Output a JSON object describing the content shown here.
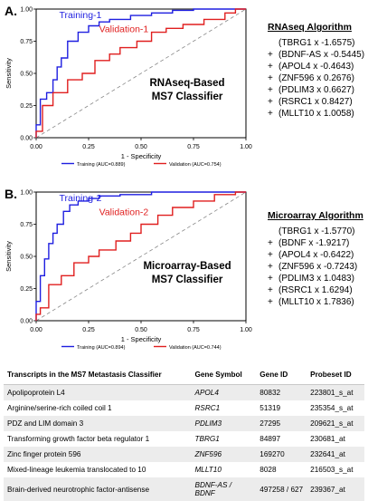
{
  "panels": [
    {
      "letter": "A.",
      "chart_data": {
        "type": "line",
        "title": "",
        "xlabel": "1 - Specificity",
        "ylabel": "Sensitivity",
        "xlim": [
          0,
          1
        ],
        "ylim": [
          0,
          1
        ],
        "xticks": [
          "0.00",
          "0.25",
          "0.50",
          "0.75",
          "1.00"
        ],
        "yticks": [
          "0.00",
          "0.25",
          "0.50",
          "0.75",
          "1.00"
        ],
        "annotation_lines": [
          "RNAseq-Based",
          "MS7 Classifier"
        ],
        "series": [
          {
            "name": "Training-1",
            "color": "#1f1fe0",
            "x": [
              0,
              0,
              0.02,
              0.02,
              0.05,
              0.05,
              0.08,
              0.08,
              0.1,
              0.1,
              0.12,
              0.12,
              0.15,
              0.15,
              0.2,
              0.2,
              0.25,
              0.25,
              0.3,
              0.3,
              0.35,
              0.35,
              0.45,
              0.45,
              0.55,
              0.55,
              0.65,
              0.65,
              0.75,
              0.75,
              1.0
            ],
            "y": [
              0,
              0.1,
              0.1,
              0.3,
              0.3,
              0.35,
              0.35,
              0.45,
              0.45,
              0.55,
              0.55,
              0.62,
              0.62,
              0.75,
              0.75,
              0.82,
              0.82,
              0.87,
              0.87,
              0.9,
              0.9,
              0.92,
              0.92,
              0.95,
              0.95,
              0.97,
              0.97,
              0.99,
              0.99,
              1.0,
              1.0
            ]
          },
          {
            "name": "Validation-1",
            "color": "#e01f1f",
            "x": [
              0,
              0,
              0.03,
              0.03,
              0.08,
              0.08,
              0.15,
              0.15,
              0.22,
              0.22,
              0.28,
              0.28,
              0.35,
              0.35,
              0.4,
              0.4,
              0.48,
              0.48,
              0.55,
              0.55,
              0.62,
              0.62,
              0.7,
              0.7,
              0.8,
              0.8,
              0.9,
              0.9,
              0.95,
              0.95,
              1.0
            ],
            "y": [
              0,
              0.05,
              0.05,
              0.25,
              0.25,
              0.35,
              0.35,
              0.45,
              0.45,
              0.5,
              0.5,
              0.6,
              0.6,
              0.65,
              0.65,
              0.7,
              0.7,
              0.75,
              0.75,
              0.82,
              0.82,
              0.85,
              0.85,
              0.88,
              0.88,
              0.92,
              0.92,
              0.97,
              0.97,
              1.0,
              1.0
            ]
          }
        ],
        "legend": [
          {
            "label": "Training (AUC=0.889)",
            "color": "#1f1fe0"
          },
          {
            "label": "Validation (AUC=0.754)",
            "color": "#e01f1f"
          }
        ]
      },
      "algorithm": {
        "title": "RNAseq Algorithm",
        "terms": [
          {
            "prefix": "",
            "text": "(TBRG1 x -1.6575)"
          },
          {
            "prefix": "+",
            "text": "(BDNF-AS x -0.5445)"
          },
          {
            "prefix": "+",
            "text": "(APOL4 x -0.4643)"
          },
          {
            "prefix": "+",
            "text": "(ZNF596 x 0.2676)"
          },
          {
            "prefix": "+",
            "text": "(PDLIM3 x 0.6627)"
          },
          {
            "prefix": "+",
            "text": "(RSRC1 x 0.8427)"
          },
          {
            "prefix": "+",
            "text": "(MLLT10 x 1.0058)"
          }
        ]
      }
    },
    {
      "letter": "B.",
      "chart_data": {
        "type": "line",
        "title": "",
        "xlabel": "1 - Specificity",
        "ylabel": "Sensitivity",
        "xlim": [
          0,
          1
        ],
        "ylim": [
          0,
          1
        ],
        "xticks": [
          "0.00",
          "0.25",
          "0.50",
          "0.75",
          "1.00"
        ],
        "yticks": [
          "0.00",
          "0.25",
          "0.50",
          "0.75",
          "1.00"
        ],
        "annotation_lines": [
          "Microarray-Based",
          "MS7 Classifier"
        ],
        "series": [
          {
            "name": "Training-2",
            "color": "#1f1fe0",
            "x": [
              0,
              0,
              0.02,
              0.02,
              0.04,
              0.04,
              0.06,
              0.06,
              0.08,
              0.08,
              0.1,
              0.1,
              0.13,
              0.13,
              0.16,
              0.16,
              0.2,
              0.2,
              0.25,
              0.25,
              0.3,
              0.3,
              0.4,
              0.4,
              0.55,
              0.55,
              0.7,
              0.7,
              1.0
            ],
            "y": [
              0,
              0.15,
              0.15,
              0.35,
              0.35,
              0.48,
              0.48,
              0.6,
              0.6,
              0.68,
              0.68,
              0.75,
              0.75,
              0.85,
              0.85,
              0.9,
              0.9,
              0.93,
              0.93,
              0.95,
              0.95,
              0.97,
              0.97,
              0.98,
              0.98,
              1.0,
              1.0,
              1.0,
              1.0
            ]
          },
          {
            "name": "Validation-2",
            "color": "#e01f1f",
            "x": [
              0,
              0,
              0.02,
              0.02,
              0.06,
              0.06,
              0.12,
              0.12,
              0.18,
              0.18,
              0.25,
              0.25,
              0.3,
              0.3,
              0.38,
              0.38,
              0.45,
              0.45,
              0.5,
              0.5,
              0.58,
              0.58,
              0.65,
              0.65,
              0.75,
              0.75,
              0.85,
              0.85,
              0.95,
              0.95,
              1.0
            ],
            "y": [
              0,
              0.05,
              0.05,
              0.1,
              0.1,
              0.28,
              0.28,
              0.35,
              0.35,
              0.45,
              0.45,
              0.5,
              0.5,
              0.55,
              0.55,
              0.62,
              0.62,
              0.68,
              0.68,
              0.75,
              0.75,
              0.82,
              0.82,
              0.88,
              0.88,
              0.93,
              0.93,
              0.98,
              0.98,
              1.0,
              1.0
            ]
          }
        ],
        "legend": [
          {
            "label": "Training (AUC=0.894)",
            "color": "#1f1fe0"
          },
          {
            "label": "Validation (AUC=0.744)",
            "color": "#e01f1f"
          }
        ]
      },
      "algorithm": {
        "title": "Microarray Algorithm",
        "terms": [
          {
            "prefix": "",
            "text": "(TBRG1 x -1.5770)"
          },
          {
            "prefix": "+",
            "text": "(BDNF x -1.9217)"
          },
          {
            "prefix": "+",
            "text": "(APOL4 x -0.6422)"
          },
          {
            "prefix": "+",
            "text": "(ZNF596 x -0.7243)"
          },
          {
            "prefix": "+",
            "text": "(PDLIM3 x 1.0483)"
          },
          {
            "prefix": "+",
            "text": "(RSRC1 x 1.6294)"
          },
          {
            "prefix": "+",
            "text": "(MLLT10 x 1.7836)"
          }
        ]
      }
    }
  ],
  "table": {
    "headers": [
      "Transcripts in the MS7 Metastasis Classifier",
      "Gene Symbol",
      "Gene ID",
      "Probeset ID"
    ],
    "rows": [
      [
        "Apolipoprotein L4",
        "APOL4",
        "80832",
        "223801_s_at"
      ],
      [
        "Arginine/serine-rich coiled coil 1",
        "RSRC1",
        "51319",
        "235354_s_at"
      ],
      [
        "PDZ and LIM domain 3",
        "PDLIM3",
        "27295",
        "209621_s_at"
      ],
      [
        "Transforming growth factor beta regulator 1",
        "TBRG1",
        "84897",
        "230681_at"
      ],
      [
        "Zinc finger protein 596",
        "ZNF596",
        "169270",
        "232641_at"
      ],
      [
        "Mixed-lineage leukemia translocated to 10",
        "MLLT10",
        "8028",
        "216503_s_at"
      ],
      [
        "Brain-derived neurotrophic factor-antisense",
        "BDNF-AS / BDNF",
        "497258 / 627",
        "239367_at"
      ]
    ]
  }
}
